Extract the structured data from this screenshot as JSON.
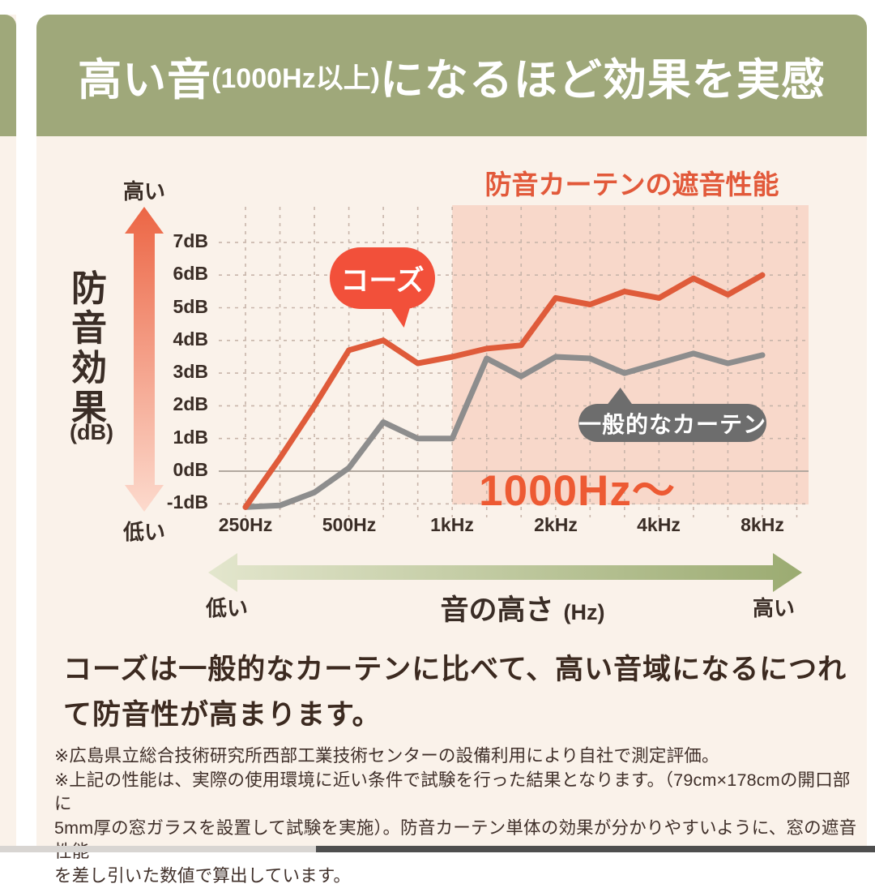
{
  "header": {
    "prefix": "高い音",
    "paren": "(1000Hz以上)",
    "suffix": "になるほど効果を実感"
  },
  "chart_data": {
    "type": "line",
    "title": "防音カーテンの遮音性能",
    "x_values_hz": [
      250,
      315,
      400,
      500,
      630,
      800,
      1000,
      1250,
      1600,
      2000,
      2500,
      3150,
      4000,
      5000,
      6300,
      8000
    ],
    "x_tick_labels": [
      "250Hz",
      "500Hz",
      "1kHz",
      "2kHz",
      "4kHz",
      "8kHz"
    ],
    "y_tick_labels": [
      "7dB",
      "6dB",
      "5dB",
      "4dB",
      "3dB",
      "2dB",
      "1dB",
      "0dB",
      "-1dB"
    ],
    "y_ticks_db": [
      7,
      6,
      5,
      4,
      3,
      2,
      1,
      0,
      -1
    ],
    "ylim": [
      -1.5,
      8.2
    ],
    "grid": "dashed",
    "legend_position": "callout-bubbles",
    "series": [
      {
        "name": "コーズ",
        "color": "#df5b3a",
        "values": [
          -1.1,
          0.4,
          2.0,
          3.7,
          4.0,
          3.3,
          3.5,
          3.75,
          3.85,
          5.3,
          5.1,
          5.5,
          5.3,
          5.9,
          5.4,
          6.0
        ]
      },
      {
        "name": "一般的なカーテン",
        "color": "#8d8d8d",
        "values": [
          -1.1,
          -1.05,
          -0.65,
          0.1,
          1.5,
          1.0,
          1.0,
          3.45,
          2.9,
          3.5,
          3.45,
          3.0,
          3.3,
          3.6,
          3.3,
          3.55
        ]
      }
    ],
    "highlight": {
      "from_hz": 1000,
      "label": "1000Hz〜",
      "fill": "#f8d8ca"
    },
    "y_axis": {
      "label": "防音効果",
      "unit": "(dB)",
      "high": "高い",
      "low": "低い"
    },
    "x_axis": {
      "label": "音の高さ",
      "unit": "(Hz)",
      "high": "高い",
      "low": "低い"
    }
  },
  "body": {
    "line1": "コーズは一般的なカーテンに比べて、高い音域になるにつれ",
    "line2": "て防音性が高まります。"
  },
  "footnotes": {
    "line1": "※広島県立総合技術研究所西部工業技術センターの設備利用により自社で測定評価。",
    "line2": "※上記の性能は、実際の使用環境に近い条件で試験を行った結果となります。（79cm×178cmの開口部に",
    "line3": "5mm厚の窓ガラスを設置して試験を実施）。防音カーテン単体の効果が分かりやすいように、窓の遮音性能",
    "line4": "を差し引いた数値で算出しています。"
  },
  "colors": {
    "banner_green": "#9fa87a",
    "card_cream": "#faf2ea",
    "accent_orange": "#e2593a",
    "highlight_pink": "#f8d8ca",
    "gray_line": "#8d8d8d",
    "text_dark": "#3c2a20"
  }
}
